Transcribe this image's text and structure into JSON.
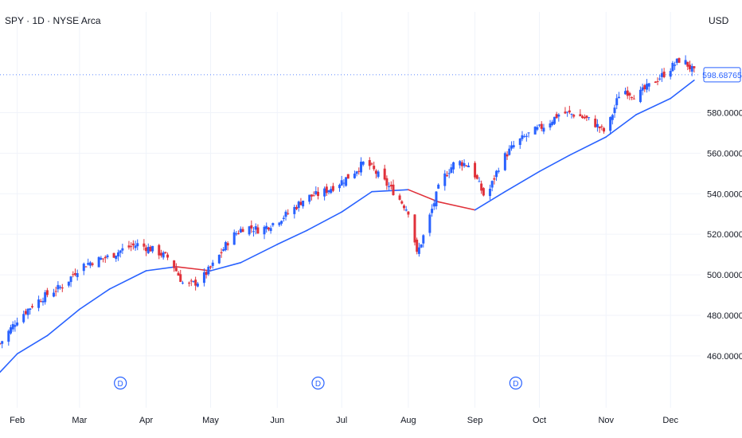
{
  "header": {
    "title": "SPY · 1D · NYSE Arca",
    "currency": "USD"
  },
  "price_tag": "598.68765",
  "colors": {
    "up": "#2962ff",
    "down": "#e0313a",
    "ma_up": "#2962ff",
    "ma_down": "#e0313a",
    "grid": "#f0f3fa",
    "axis_text": "#131722"
  },
  "dividend_marker": "D",
  "chart_data": {
    "type": "line",
    "title": "SPY · 1D · NYSE Arca",
    "xlabel": "",
    "ylabel": "USD",
    "ylim": [
      447,
      612
    ],
    "y_ticks": [
      "460.00000",
      "480.00000",
      "500.00000",
      "520.00000",
      "540.00000",
      "560.00000",
      "580.00000"
    ],
    "x_ticks": [
      "Feb",
      "Mar",
      "Apr",
      "May",
      "Jun",
      "Jul",
      "Aug",
      "Sep",
      "Oct",
      "Nov",
      "Dec"
    ],
    "grid": true,
    "last_price": 598.68765,
    "dividend_markers": [
      "Mar",
      "Jun",
      "Sep"
    ],
    "series": [
      {
        "kind": "candles",
        "points": [
          [
            "Jan 24",
            466
          ],
          [
            "Feb 1",
            478
          ],
          [
            "Feb 9",
            486
          ],
          [
            "Feb 16",
            491
          ],
          [
            "Feb 23",
            495
          ],
          [
            "Mar 1",
            504
          ],
          [
            "Mar 8",
            507
          ],
          [
            "Mar 15",
            509
          ],
          [
            "Mar 22",
            513
          ],
          [
            "Mar 28",
            515
          ],
          [
            "Apr 5",
            512
          ],
          [
            "Apr 12",
            508
          ],
          [
            "Apr 19",
            494
          ],
          [
            "Apr 26",
            497
          ],
          [
            "May 3",
            506
          ],
          [
            "May 10",
            518
          ],
          [
            "May 17",
            524
          ],
          [
            "May 24",
            522
          ],
          [
            "May 31",
            526
          ],
          [
            "Jun 7",
            531
          ],
          [
            "Jun 14",
            538
          ],
          [
            "Jun 21",
            540
          ],
          [
            "Jun 28",
            544
          ],
          [
            "Jul 5",
            549
          ],
          [
            "Jul 12",
            556
          ],
          [
            "Jul 19",
            548
          ],
          [
            "Jul 26",
            540
          ],
          [
            "Aug 2",
            530
          ],
          [
            "Aug 5",
            510
          ],
          [
            "Aug 9",
            522
          ],
          [
            "Aug 16",
            546
          ],
          [
            "Aug 23",
            556
          ],
          [
            "Aug 30",
            554
          ],
          [
            "Sep 6",
            537
          ],
          [
            "Sep 13",
            556
          ],
          [
            "Sep 20",
            565
          ],
          [
            "Sep 27",
            570
          ],
          [
            "Oct 4",
            574
          ],
          [
            "Oct 11",
            580
          ],
          [
            "Oct 18",
            579
          ],
          [
            "Oct 25",
            576
          ],
          [
            "Nov 1",
            570
          ],
          [
            "Nov 8",
            592
          ],
          [
            "Nov 15",
            588
          ],
          [
            "Nov 22",
            594
          ],
          [
            "Nov 29",
            600
          ],
          [
            "Dec 6",
            607
          ],
          [
            "Dec 12",
            600
          ]
        ]
      },
      {
        "name": "",
        "kind": "moving-average",
        "points": [
          [
            "Jan 24",
            452
          ],
          [
            "Feb 1",
            461
          ],
          [
            "Feb 15",
            470
          ],
          [
            "Mar 1",
            483
          ],
          [
            "Mar 15",
            493
          ],
          [
            "Apr 1",
            502
          ],
          [
            "Apr 15",
            504
          ],
          [
            "May 1",
            502
          ],
          [
            "May 15",
            506
          ],
          [
            "Jun 1",
            515
          ],
          [
            "Jun 15",
            522
          ],
          [
            "Jul 1",
            531
          ],
          [
            "Jul 15",
            541
          ],
          [
            "Aug 1",
            542
          ],
          [
            "Aug 15",
            536
          ],
          [
            "Sep 1",
            532
          ],
          [
            "Sep 15",
            541
          ],
          [
            "Oct 1",
            551
          ],
          [
            "Oct 15",
            559
          ],
          [
            "Nov 1",
            568
          ],
          [
            "Nov 15",
            579
          ],
          [
            "Dec 1",
            587
          ],
          [
            "Dec 12",
            596
          ]
        ]
      }
    ]
  }
}
